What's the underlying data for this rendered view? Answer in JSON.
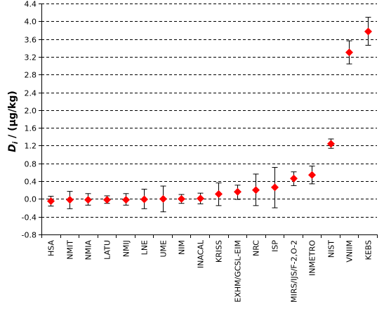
{
  "chart_data": {
    "type": "scatter",
    "ylabel_main": "D",
    "ylabel_sub": "i",
    "ylabel_rest": " / (µg/kg)",
    "xlabel": "",
    "ylim": [
      -0.8,
      4.4
    ],
    "yticks": [
      "4.4",
      "4.0",
      "3.6",
      "3.2",
      "2.8",
      "2.4",
      "2.0",
      "1.6",
      "1.2",
      "0.8",
      "0.4",
      "0.0",
      "-0.4",
      "-0.8"
    ],
    "ytick_values": [
      4.4,
      4.0,
      3.6,
      3.2,
      2.8,
      2.4,
      2.0,
      1.6,
      1.2,
      0.8,
      0.4,
      0.0,
      -0.4,
      -0.8
    ],
    "grid": "horizontal-dashed",
    "marker": "diamond",
    "marker_color": "#ff0000",
    "categories": [
      "HSA",
      "NMIT",
      "NMIA",
      "LATU",
      "NMIJ",
      "LNE",
      "UME",
      "NIM",
      "INACAL",
      "KRISS",
      "EXHM/GCSL-EIM",
      "NRC",
      "ISP",
      "MIRS/IJS/F-2,O-2",
      "INMETRO",
      "NIST",
      "VNIIM",
      "KEBS"
    ],
    "values": [
      -0.05,
      -0.02,
      -0.02,
      -0.02,
      -0.02,
      -0.01,
      0.0,
      0.0,
      0.01,
      0.11,
      0.16,
      0.2,
      0.26,
      0.46,
      0.54,
      1.24,
      3.3,
      3.77
    ],
    "err_high": [
      0.06,
      0.17,
      0.12,
      0.07,
      0.12,
      0.22,
      0.29,
      0.1,
      0.13,
      0.36,
      0.31,
      0.56,
      0.71,
      0.61,
      0.74,
      1.35,
      3.56,
      4.09
    ],
    "err_low": [
      -0.16,
      -0.22,
      -0.14,
      -0.1,
      -0.14,
      -0.22,
      -0.29,
      -0.1,
      -0.11,
      -0.15,
      -0.01,
      -0.15,
      -0.2,
      0.3,
      0.34,
      1.14,
      3.04,
      3.46
    ]
  }
}
